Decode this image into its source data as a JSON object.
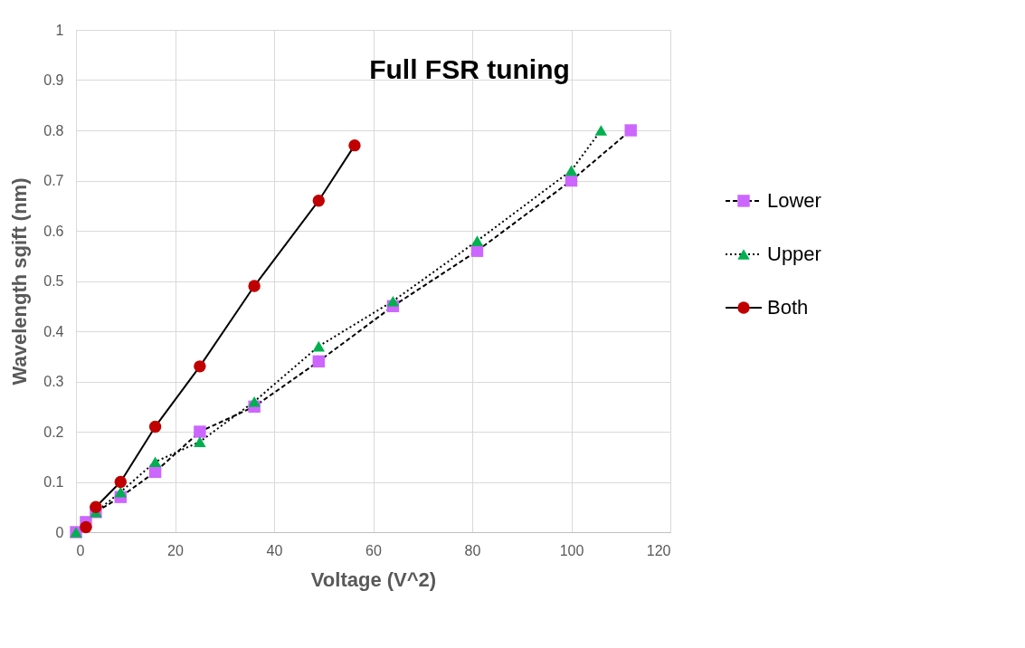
{
  "chart_data": {
    "type": "line",
    "xlabel": "Voltage (V^2)",
    "ylabel": "Wavelength sgift (nm)",
    "xlim": [
      0,
      120
    ],
    "xticks": [
      0,
      20,
      40,
      60,
      80,
      100,
      120
    ],
    "ylim": [
      0,
      1
    ],
    "yticks": [
      0,
      0.1,
      0.2,
      0.3,
      0.4,
      0.5,
      0.6,
      0.7,
      0.8,
      0.9,
      1
    ],
    "grid": true,
    "legend": "right",
    "annotations": [
      "Full FSR tuning"
    ],
    "series": [
      {
        "name": "Lower",
        "color": "#cc66ff",
        "marker": "square",
        "line_style": "dashed",
        "x": [
          0,
          2,
          4,
          9,
          16,
          25,
          36,
          49,
          64,
          81,
          100,
          112
        ],
        "values": [
          0,
          0.02,
          0.04,
          0.07,
          0.12,
          0.2,
          0.25,
          0.34,
          0.45,
          0.56,
          0.7,
          0.8
        ]
      },
      {
        "name": "Upper",
        "color": "#00b050",
        "marker": "triangle",
        "line_style": "dotted",
        "x": [
          0,
          4,
          9,
          16,
          25,
          36,
          49,
          64,
          81,
          100,
          106
        ],
        "values": [
          0,
          0.04,
          0.08,
          0.14,
          0.18,
          0.26,
          0.37,
          0.46,
          0.58,
          0.72,
          0.8
        ]
      },
      {
        "name": "Both",
        "color": "#c00000",
        "marker": "circle",
        "line_style": "solid",
        "x": [
          2,
          4,
          9,
          16,
          25,
          36,
          49,
          56.25
        ],
        "values": [
          0.01,
          0.05,
          0.1,
          0.21,
          0.33,
          0.49,
          0.66,
          0.77
        ]
      }
    ]
  }
}
